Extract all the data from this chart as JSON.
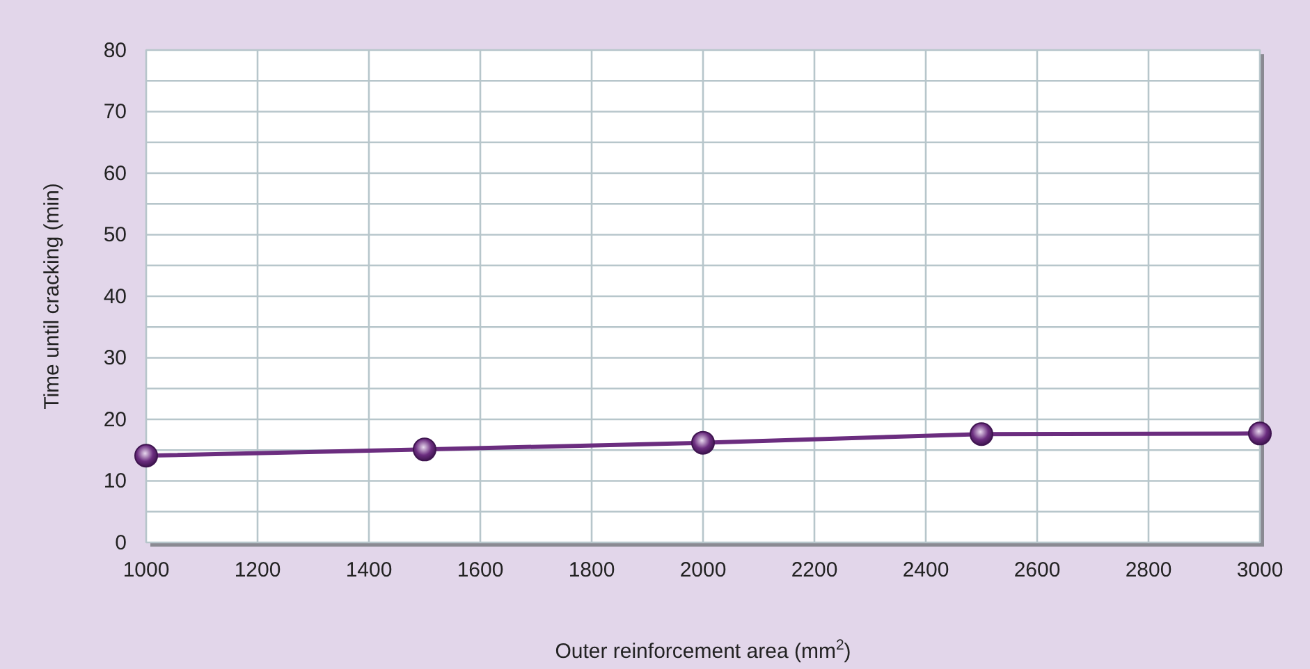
{
  "chart_data": {
    "type": "line",
    "xlabel": "Outer reinforcement area (mm$^{2}$)",
    "ylabel": "Time until cracking (min)",
    "x": [
      1000,
      1500,
      2000,
      2500,
      3000
    ],
    "series": [
      {
        "color": "#6b2d7f",
        "values": [
          14.1,
          15.1,
          16.2,
          17.6,
          17.7
        ]
      }
    ],
    "xlim": [
      1000,
      3000
    ],
    "xticks": [
      1000,
      1200,
      1400,
      1600,
      1800,
      2000,
      2200,
      2400,
      2600,
      2800,
      3000
    ],
    "ylim": [
      0,
      80
    ],
    "yticks": [
      0,
      {
        "value": 5,
        "label": null
      },
      10,
      {
        "value": 15,
        "label": null
      },
      20,
      {
        "value": 25,
        "label": null
      },
      30,
      {
        "value": 35,
        "label": null
      },
      40,
      {
        "value": 45,
        "label": null
      },
      50,
      {
        "value": 55,
        "label": null
      },
      60,
      {
        "value": 65,
        "label": null
      },
      70,
      {
        "value": 75,
        "label": null
      },
      80
    ],
    "grid": true,
    "marker": "circle",
    "line_style": "solid"
  }
}
